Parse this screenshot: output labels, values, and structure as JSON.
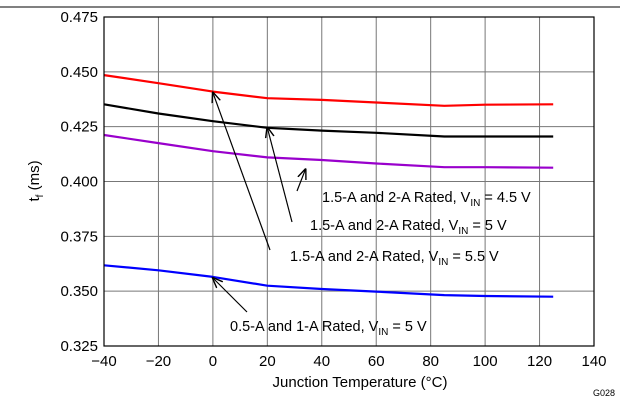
{
  "chart_data": {
    "type": "line",
    "title": "",
    "xlabel": "Junction Temperature (°C)",
    "ylabel_main": "t",
    "ylabel_sub": "f",
    "ylabel_unit": " (ms)",
    "xlim": [
      -40,
      140
    ],
    "ylim": [
      0.325,
      0.475
    ],
    "xticks": [
      -40,
      -20,
      0,
      20,
      40,
      60,
      80,
      100,
      120,
      140
    ],
    "xtick_labels": [
      "−40",
      "−20",
      "0",
      "20",
      "40",
      "60",
      "80",
      "100",
      "120",
      "140"
    ],
    "yticks": [
      0.325,
      0.35,
      0.375,
      0.4,
      0.425,
      0.45,
      0.475
    ],
    "ytick_labels": [
      "0.325",
      "0.350",
      "0.375",
      "0.400",
      "0.425",
      "0.450",
      "0.475"
    ],
    "grid": true,
    "legend": "none",
    "figure_id": "G028",
    "series": [
      {
        "color": "#ff0000",
        "x": [
          -40,
          -20,
          0,
          20,
          40,
          60,
          85,
          100,
          125
        ],
        "y": [
          0.4485,
          0.4448,
          0.441,
          0.438,
          0.4372,
          0.436,
          0.4345,
          0.435,
          0.4352
        ]
      },
      {
        "color": "#000000",
        "x": [
          -40,
          -20,
          0,
          20,
          40,
          60,
          85,
          100,
          125
        ],
        "y": [
          0.4352,
          0.431,
          0.4275,
          0.4245,
          0.4232,
          0.4222,
          0.4205,
          0.4205,
          0.4205
        ]
      },
      {
        "color": "#9900cc",
        "x": [
          -40,
          -20,
          0,
          20,
          40,
          60,
          85,
          100,
          125
        ],
        "y": [
          0.4212,
          0.4175,
          0.4138,
          0.411,
          0.4098,
          0.4082,
          0.4065,
          0.4065,
          0.4063
        ]
      },
      {
        "color": "#0000ff",
        "x": [
          -40,
          -20,
          0,
          20,
          40,
          60,
          85,
          100,
          125
        ],
        "y": [
          0.3618,
          0.3595,
          0.3565,
          0.3525,
          0.351,
          0.3498,
          0.3482,
          0.3478,
          0.3475
        ]
      }
    ],
    "annotations": [
      {
        "prefix": "1.5-A and 2-A Rated, V",
        "sub": "IN",
        "suffix": " = 4.5 V",
        "arrow_to": [
          34,
          0.4055
        ]
      },
      {
        "prefix": "1.5-A and 2-A Rated, V",
        "sub": "IN",
        "suffix": " = 5 V",
        "arrow_to": [
          20,
          0.4245
        ]
      },
      {
        "prefix": "1.5-A and 2-A Rated, V",
        "sub": "IN",
        "suffix": " = 5.5 V",
        "arrow_to": [
          0,
          0.4405
        ]
      },
      {
        "prefix": "0.5-A and 1-A Rated, V",
        "sub": "IN",
        "suffix": " = 5 V",
        "arrow_to": [
          0,
          0.356
        ]
      }
    ]
  }
}
